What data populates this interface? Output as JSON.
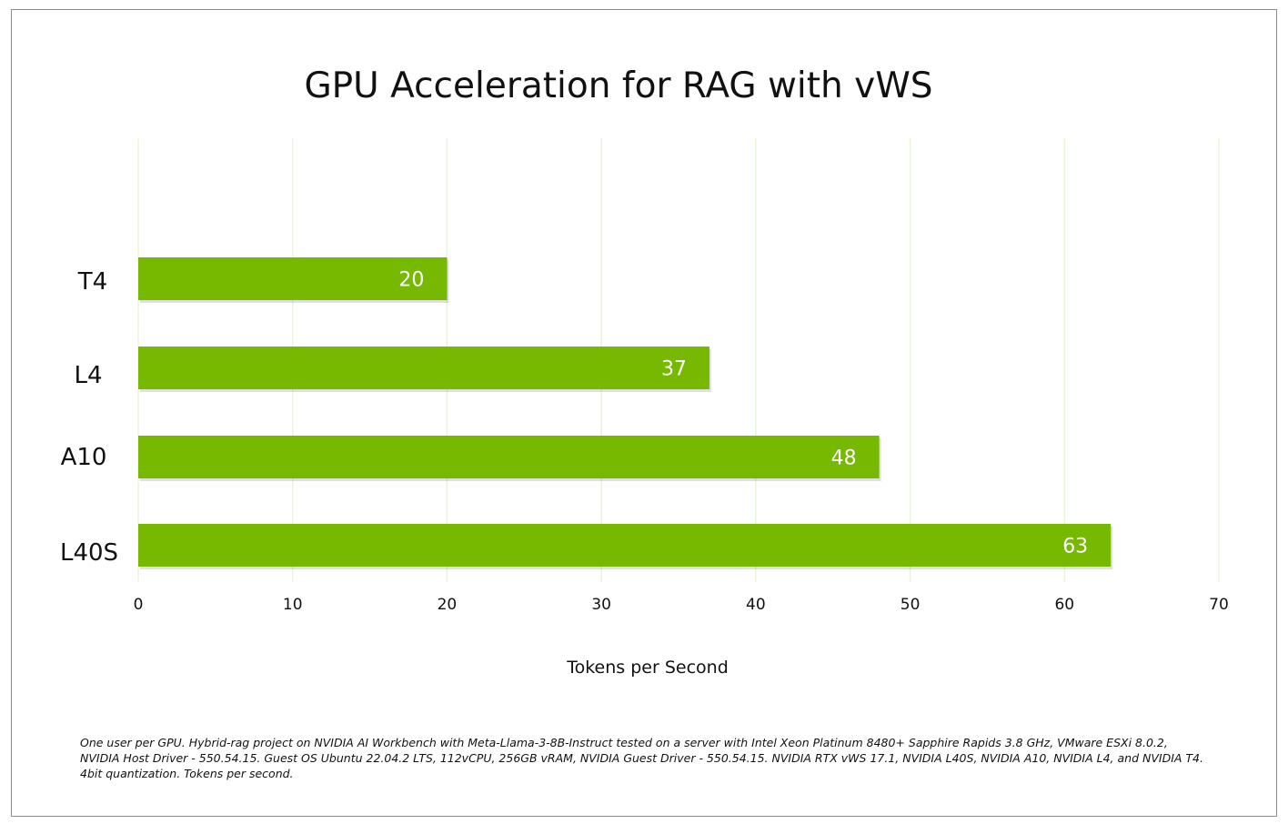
{
  "chart_data": {
    "type": "bar",
    "orientation": "horizontal",
    "title": "GPU Acceleration for RAG with vWS",
    "xlabel": "Tokens per Second",
    "ylabel": "",
    "categories": [
      "T4",
      "L4",
      "A10",
      "L40S"
    ],
    "values": [
      20,
      37,
      48,
      63
    ],
    "data_labels": [
      "20",
      "37",
      "48",
      "63"
    ],
    "xlim": [
      0,
      70
    ],
    "xticks": [
      "0",
      "10",
      "20",
      "30",
      "40",
      "50",
      "60",
      "70"
    ],
    "grid": true,
    "bar_color": "#76b900",
    "grid_color": "#e8f5d8"
  },
  "footnote": "One user per GPU. Hybrid-rag project on NVIDIA AI Workbench with Meta-Llama-3-8B-Instruct tested on a server with Intel Xeon Platinum 8480+ Sapphire Rapids 3.8 GHz, VMware ESXi 8.0.2, NVIDIA Host Driver - 550.54.15. Guest OS Ubuntu 22.04.2 LTS, 112vCPU, 256GB vRAM, NVIDIA Guest Driver - 550.54.15. NVIDIA RTX vWS 17.1, NVIDIA L40S, NVIDIA A10, NVIDIA L4, and NVIDIA T4. 4bit quantization. Tokens per second."
}
